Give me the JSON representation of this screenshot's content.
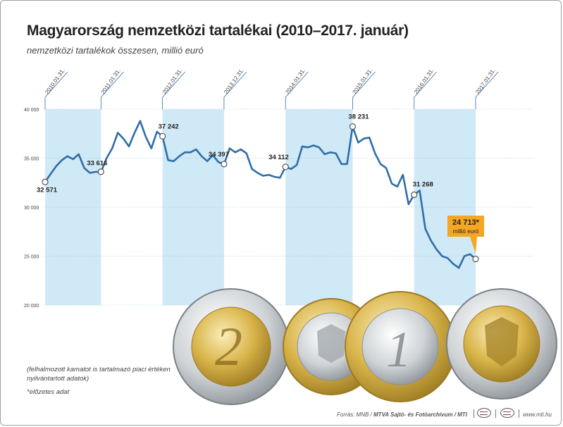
{
  "title": "Magyarország nemzetközi tartalékai (2010–2017. január)",
  "subtitle": "nemzetközi tartalékok összesen, millió euró",
  "notes": {
    "note1": "(felhalmozott kamatot is tartalmazó piaci értéken nyilvántartott adatok)",
    "note2": "*előzetes adat"
  },
  "source": {
    "prefix": "Forrás: MNB / ",
    "agency": "MTVA Sajtó- és Fotóarchívum / MTI",
    "site": "www.mti.hu"
  },
  "colors": {
    "line": "#2f6ea8",
    "band": "#cfe9f6",
    "callout": "#f5a623",
    "grid": "#a7c9dd"
  },
  "chart_data": {
    "type": "line",
    "y_unit": "millió euró",
    "ylim": [
      20000,
      40000
    ],
    "yticks": [
      "40 000",
      "35 000",
      "30 000",
      "25 000",
      "20 000"
    ],
    "ytick_values": [
      40000,
      35000,
      30000,
      25000,
      20000
    ],
    "grid": true,
    "date_labels": [
      "2010.01.31.",
      "2011.01.31.",
      "2012.01.31.",
      "2013.12.31.",
      "2014.01.31.",
      "2015.01.31.",
      "2016.01.31.",
      "2017.01.31."
    ],
    "series": [
      {
        "values": [
          32571,
          33400,
          34200,
          34800,
          35200,
          34900,
          35400,
          34000,
          33500,
          33600,
          33616,
          35000,
          36000,
          37600,
          37000,
          36200,
          37600,
          38800,
          37200,
          36000,
          37700,
          37242,
          34800,
          34700,
          35200,
          35600,
          35600,
          35900,
          35200,
          34700,
          35300,
          34600,
          34397,
          36000,
          35600,
          35900,
          35500,
          33900,
          33500,
          33200,
          33300,
          33100,
          33000,
          34112,
          33900,
          34300,
          36200,
          36100,
          36300,
          36100,
          35400,
          35600,
          35500,
          34400,
          34400,
          38231,
          36600,
          37000,
          37100,
          35500,
          34400,
          34000,
          32400,
          32100,
          33300,
          30300,
          31268,
          31700,
          27800,
          26600,
          25700,
          25000,
          24800,
          24200,
          23800,
          25000,
          25200,
          24713
        ],
        "labeled_points": [
          {
            "date": "2010.01.31.",
            "value": 32571,
            "label": "32 571"
          },
          {
            "date": "2011.01.31.",
            "value": 33616,
            "label": "33 616"
          },
          {
            "date": "2012.01.31.",
            "value": 37242,
            "label": "37 242"
          },
          {
            "date": "2013.12.31.",
            "value": 34397,
            "label": "34 397"
          },
          {
            "date": "2014.01.31.",
            "value": 34112,
            "label": "34 112"
          },
          {
            "date": "2015.01.31.",
            "value": 38231,
            "label": "38 231"
          },
          {
            "date": "2016.01.31.",
            "value": 31268,
            "label": "31 268"
          },
          {
            "date": "2017.01.31.",
            "value": 24713,
            "label": "24 713*"
          }
        ]
      }
    ],
    "callout": {
      "value": "24 713*",
      "unit": "millió euró"
    }
  }
}
